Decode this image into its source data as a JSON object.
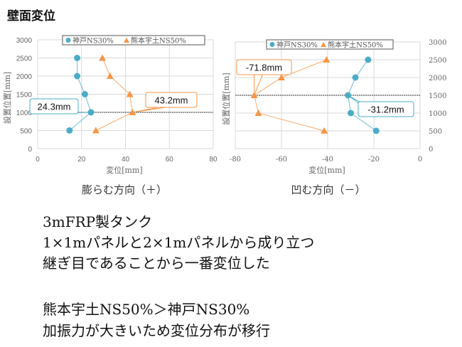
{
  "slide_title": "壁面変位",
  "body_lines": [
    "3mFRP製タンク",
    "1×1mパネルと2×1mパネルから成り立つ",
    "継ぎ目であることから一番変位した",
    "",
    "熊本宇土NS50%＞神戸NS30%",
    "加振力が大きいため変位分布が移行"
  ],
  "colors": {
    "kobe": "#4bacc6",
    "kumamoto": "#f79646"
  },
  "chart_data": [
    {
      "type": "line",
      "caption": "膨らむ方向（＋）",
      "xlabel": "変位[mm]",
      "ylabel": "設置位置[mm]",
      "xlim": [
        0,
        80
      ],
      "ylim": [
        0,
        3000
      ],
      "xticks": [
        0,
        20,
        40,
        60,
        80
      ],
      "yticks": [
        0,
        500,
        1000,
        1500,
        2000,
        2500,
        3000
      ],
      "yaxis_side": "left",
      "grid": true,
      "legend": "top",
      "reference_line_y": 1000,
      "series": [
        {
          "name": "神戸NS30%",
          "marker": "circle",
          "x": [
            18,
            18,
            21.5,
            24.3,
            14.5
          ],
          "y": [
            2500,
            2000,
            1500,
            1000,
            500
          ]
        },
        {
          "name": "熊本宇土NS50%",
          "marker": "triangle",
          "x": [
            29.5,
            33,
            42,
            43.2,
            26.5
          ],
          "y": [
            2500,
            2000,
            1500,
            1000,
            500
          ]
        }
      ],
      "annotations": [
        {
          "text": "24.3mm",
          "series": 0,
          "point": 3
        },
        {
          "text": "43.2mm",
          "series": 1,
          "point": 3
        }
      ]
    },
    {
      "type": "line",
      "caption": "凹む方向（－）",
      "xlabel": "変位[mm]",
      "ylabel": "設置位置[mm]",
      "xlim": [
        -80,
        0
      ],
      "ylim": [
        0,
        3000
      ],
      "xticks": [
        -80,
        -60,
        -40,
        -20,
        0
      ],
      "yticks": [
        0,
        500,
        1000,
        1500,
        2000,
        2500,
        3000
      ],
      "yaxis_side": "right",
      "grid": true,
      "legend": "top",
      "reference_line_y": 1500,
      "series": [
        {
          "name": "神戸NS30%",
          "marker": "circle",
          "x": [
            -22.5,
            -28,
            -31.2,
            -30,
            -19
          ],
          "y": [
            2500,
            2000,
            1500,
            1000,
            500
          ]
        },
        {
          "name": "熊本宇土NS50%",
          "marker": "triangle",
          "x": [
            -40.5,
            -60,
            -71.8,
            -70,
            -41.5
          ],
          "y": [
            2500,
            2000,
            1500,
            1000,
            500
          ]
        }
      ],
      "annotations": [
        {
          "text": "-71.8mm",
          "series": 1,
          "point": 2
        },
        {
          "text": "-31.2mm",
          "series": 0,
          "point": 2
        }
      ]
    }
  ]
}
